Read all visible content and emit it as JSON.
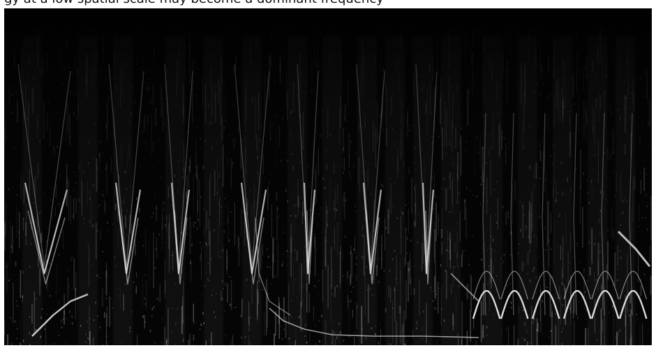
{
  "caption_text": "gy at a low spatial scale may become a dominant frequency",
  "image": {
    "kind": "spectrogram",
    "background_color": "#050505",
    "trace_color": "#ffffff",
    "noise_color": "#bdbdbd"
  }
}
